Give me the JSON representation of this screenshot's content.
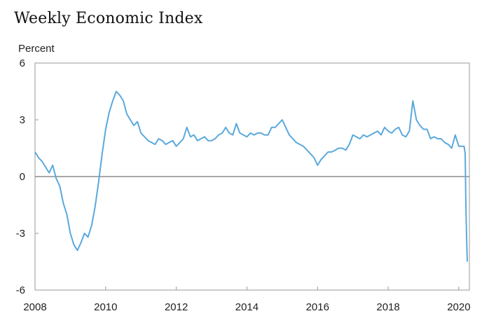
{
  "chart_data": {
    "type": "line",
    "title": "Weekly Economic Index",
    "ylabel": "Percent",
    "xlabel": "",
    "xlim": [
      2008.0,
      2020.3
    ],
    "ylim": [
      -6,
      6
    ],
    "x_ticks": [
      2008,
      2010,
      2012,
      2014,
      2016,
      2018,
      2020
    ],
    "y_ticks": [
      -6,
      -3,
      0,
      3,
      6
    ],
    "zero_line": true,
    "grid": false,
    "legend": "none",
    "line_color": "#5aa9dc",
    "series": [
      {
        "x": [
          2008.0,
          2008.1,
          2008.2,
          2008.3,
          2008.4,
          2008.5,
          2008.6,
          2008.7,
          2008.8,
          2008.9,
          2009.0,
          2009.1,
          2009.2,
          2009.3,
          2009.4,
          2009.5,
          2009.6,
          2009.7,
          2009.8,
          2009.9,
          2010.0,
          2010.1,
          2010.2,
          2010.3,
          2010.4,
          2010.5,
          2010.6,
          2010.7,
          2010.8,
          2010.9,
          2011.0,
          2011.1,
          2011.2,
          2011.3,
          2011.4,
          2011.5,
          2011.6,
          2011.7,
          2011.8,
          2011.9,
          2012.0,
          2012.1,
          2012.2,
          2012.3,
          2012.4,
          2012.5,
          2012.6,
          2012.7,
          2012.8,
          2012.9,
          2013.0,
          2013.1,
          2013.2,
          2013.3,
          2013.4,
          2013.5,
          2013.6,
          2013.7,
          2013.8,
          2013.9,
          2014.0,
          2014.1,
          2014.2,
          2014.3,
          2014.4,
          2014.5,
          2014.6,
          2014.7,
          2014.8,
          2014.9,
          2015.0,
          2015.1,
          2015.2,
          2015.3,
          2015.4,
          2015.5,
          2015.6,
          2015.7,
          2015.8,
          2015.9,
          2016.0,
          2016.1,
          2016.2,
          2016.3,
          2016.4,
          2016.5,
          2016.6,
          2016.7,
          2016.8,
          2016.9,
          2017.0,
          2017.1,
          2017.2,
          2017.3,
          2017.4,
          2017.5,
          2017.6,
          2017.7,
          2017.8,
          2017.9,
          2018.0,
          2018.1,
          2018.2,
          2018.3,
          2018.4,
          2018.5,
          2018.6,
          2018.7,
          2018.8,
          2018.9,
          2019.0,
          2019.1,
          2019.2,
          2019.3,
          2019.4,
          2019.5,
          2019.6,
          2019.7,
          2019.8,
          2019.9,
          2020.0,
          2020.1,
          2020.15,
          2020.18,
          2020.2,
          2020.22,
          2020.24
        ],
        "y": [
          1.3,
          1.0,
          0.8,
          0.5,
          0.2,
          0.6,
          -0.1,
          -0.5,
          -1.4,
          -2.0,
          -3.0,
          -3.6,
          -3.9,
          -3.5,
          -3.0,
          -3.2,
          -2.6,
          -1.6,
          -0.3,
          1.2,
          2.5,
          3.4,
          4.0,
          4.5,
          4.3,
          4.0,
          3.3,
          3.0,
          2.7,
          2.9,
          2.3,
          2.1,
          1.9,
          1.8,
          1.7,
          2.0,
          1.9,
          1.7,
          1.8,
          1.9,
          1.6,
          1.8,
          2.0,
          2.6,
          2.1,
          2.2,
          1.9,
          2.0,
          2.1,
          1.9,
          1.9,
          2.0,
          2.2,
          2.3,
          2.6,
          2.3,
          2.2,
          2.8,
          2.3,
          2.2,
          2.1,
          2.3,
          2.2,
          2.3,
          2.3,
          2.2,
          2.2,
          2.6,
          2.6,
          2.8,
          3.0,
          2.6,
          2.2,
          2.0,
          1.8,
          1.7,
          1.6,
          1.4,
          1.2,
          1.0,
          0.6,
          0.9,
          1.1,
          1.3,
          1.3,
          1.4,
          1.5,
          1.5,
          1.4,
          1.7,
          2.2,
          2.1,
          2.0,
          2.2,
          2.1,
          2.2,
          2.3,
          2.4,
          2.2,
          2.6,
          2.4,
          2.3,
          2.5,
          2.6,
          2.2,
          2.1,
          2.4,
          4.0,
          3.0,
          2.7,
          2.5,
          2.5,
          2.0,
          2.1,
          2.0,
          2.0,
          1.8,
          1.7,
          1.5,
          2.2,
          1.6,
          1.6,
          1.6,
          1.2,
          -1.5,
          -3.2,
          -4.5
        ]
      }
    ]
  }
}
